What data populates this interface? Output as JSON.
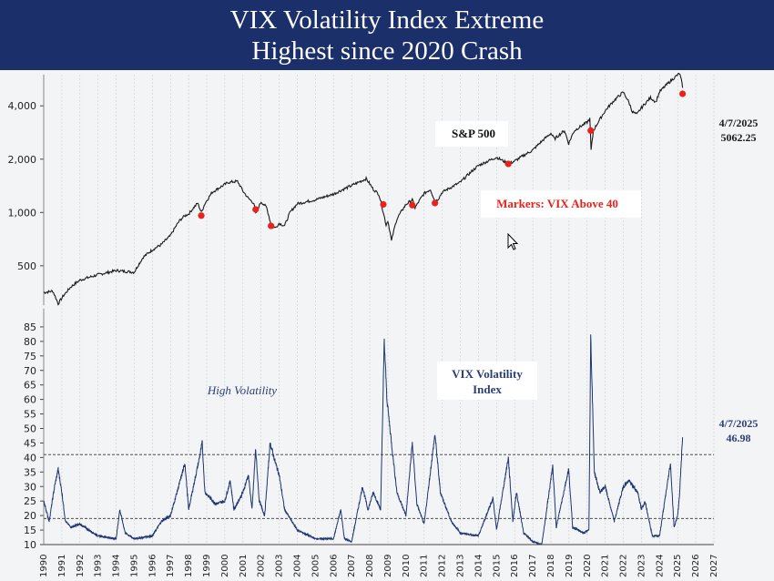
{
  "title_line1": "VIX Volatility Index Extreme",
  "title_line2": "Highest since 2020 Crash",
  "sp_annotation": {
    "date": "4/7/2025",
    "value": "5062.25"
  },
  "vix_annotation": {
    "date": "4/7/2025",
    "value": "46.98"
  },
  "colors": {
    "title_bg": "#1b2f6b",
    "sp_line": "#1a1a1a",
    "vix_line": "#1f3572",
    "marker": "#e8231b",
    "marker_label": "#e8231b",
    "label_navy": "#2c3e78"
  },
  "cursor_icon": "mouse-pointer-icon",
  "chart_data": [
    {
      "type": "line",
      "scale": "log",
      "title": "S&P 500",
      "annotation": "Markers: VIX Above 40",
      "ylim": [
        300,
        6000
      ],
      "yticks": [
        {
          "v": 500,
          "label": "500"
        },
        {
          "v": 1000,
          "label": "1,000"
        },
        {
          "v": 2000,
          "label": "2,000"
        },
        {
          "v": 4000,
          "label": "4,000"
        }
      ],
      "series": [
        {
          "points": [
            [
              1990.0,
              353
            ],
            [
              1990.5,
              360
            ],
            [
              1990.8,
              305
            ],
            [
              1991.1,
              340
            ],
            [
              1991.5,
              380
            ],
            [
              1992.0,
              415
            ],
            [
              1993.0,
              445
            ],
            [
              1994.0,
              470
            ],
            [
              1995.0,
              460
            ],
            [
              1995.5,
              560
            ],
            [
              1996.0,
              615
            ],
            [
              1996.5,
              660
            ],
            [
              1997.0,
              740
            ],
            [
              1997.5,
              900
            ],
            [
              1997.8,
              960
            ],
            [
              1998.0,
              980
            ],
            [
              1998.5,
              1130
            ],
            [
              1998.7,
              1000
            ],
            [
              1998.9,
              1120
            ],
            [
              1999.3,
              1300
            ],
            [
              1999.8,
              1400
            ],
            [
              2000.2,
              1480
            ],
            [
              2000.7,
              1500
            ],
            [
              2001.0,
              1320
            ],
            [
              2001.3,
              1200
            ],
            [
              2001.6,
              1130
            ],
            [
              2001.7,
              980
            ],
            [
              2002.0,
              1150
            ],
            [
              2002.3,
              1070
            ],
            [
              2002.55,
              850
            ],
            [
              2002.8,
              820
            ],
            [
              2003.0,
              870
            ],
            [
              2003.3,
              840
            ],
            [
              2003.6,
              1000
            ],
            [
              2004.0,
              1120
            ],
            [
              2005.0,
              1180
            ],
            [
              2006.0,
              1270
            ],
            [
              2007.0,
              1420
            ],
            [
              2007.8,
              1550
            ],
            [
              2008.2,
              1350
            ],
            [
              2008.5,
              1270
            ],
            [
              2008.75,
              1000
            ],
            [
              2008.9,
              850
            ],
            [
              2009.0,
              900
            ],
            [
              2009.2,
              690
            ],
            [
              2009.5,
              920
            ],
            [
              2010.0,
              1110
            ],
            [
              2010.35,
              1180
            ],
            [
              2010.5,
              1060
            ],
            [
              2011.0,
              1280
            ],
            [
              2011.35,
              1350
            ],
            [
              2011.6,
              1150
            ],
            [
              2011.8,
              1200
            ],
            [
              2012.0,
              1300
            ],
            [
              2013.0,
              1480
            ],
            [
              2014.0,
              1840
            ],
            [
              2015.0,
              2050
            ],
            [
              2015.65,
              1880
            ],
            [
              2016.0,
              1950
            ],
            [
              2017.0,
              2250
            ],
            [
              2018.0,
              2800
            ],
            [
              2018.2,
              2600
            ],
            [
              2018.75,
              2900
            ],
            [
              2018.98,
              2450
            ],
            [
              2019.3,
              2900
            ],
            [
              2020.0,
              3230
            ],
            [
              2020.15,
              3380
            ],
            [
              2020.22,
              2240
            ],
            [
              2020.35,
              2900
            ],
            [
              2020.7,
              3350
            ],
            [
              2021.0,
              3750
            ],
            [
              2021.5,
              4300
            ],
            [
              2022.0,
              4780
            ],
            [
              2022.3,
              4200
            ],
            [
              2022.5,
              3700
            ],
            [
              2022.75,
              3580
            ],
            [
              2023.0,
              3900
            ],
            [
              2023.5,
              4450
            ],
            [
              2023.8,
              4200
            ],
            [
              2024.0,
              4800
            ],
            [
              2024.5,
              5400
            ],
            [
              2025.1,
              6100
            ],
            [
              2025.2,
              5600
            ],
            [
              2025.27,
              5060
            ]
          ]
        }
      ],
      "markers": [
        {
          "x": 1998.7,
          "y": 960
        },
        {
          "x": 2001.7,
          "y": 1040
        },
        {
          "x": 2002.55,
          "y": 840
        },
        {
          "x": 2008.75,
          "y": 1110
        },
        {
          "x": 2010.35,
          "y": 1100
        },
        {
          "x": 2011.6,
          "y": 1130
        },
        {
          "x": 2015.65,
          "y": 1880
        },
        {
          "x": 2020.2,
          "y": 2900
        },
        {
          "x": 2025.27,
          "y": 4680
        }
      ]
    },
    {
      "type": "line",
      "title": "VIX Volatility Index",
      "annotation": "High Volatility",
      "xlim": [
        1990,
        2027
      ],
      "ylim": [
        10,
        90
      ],
      "yticks": [
        10,
        15,
        20,
        25,
        30,
        35,
        40,
        45,
        50,
        55,
        60,
        65,
        70,
        75,
        80,
        85
      ],
      "reference_lines": [
        41,
        19
      ],
      "categories": [
        "1990",
        "1991",
        "1992",
        "1993",
        "1994",
        "1995",
        "1996",
        "1997",
        "1998",
        "1999",
        "2000",
        "2001",
        "2002",
        "2003",
        "2004",
        "2005",
        "2006",
        "2007",
        "2008",
        "2009",
        "2010",
        "2011",
        "2012",
        "2013",
        "2014",
        "2015",
        "2016",
        "2017",
        "2018",
        "2019",
        "2020",
        "2021",
        "2022",
        "2023",
        "2024",
        "2025",
        "2026",
        "2027"
      ],
      "series": [
        {
          "points": [
            [
              1990.0,
              25
            ],
            [
              1990.3,
              18
            ],
            [
              1990.6,
              30
            ],
            [
              1990.8,
              36
            ],
            [
              1991.0,
              28
            ],
            [
              1991.2,
              18
            ],
            [
              1991.5,
              16
            ],
            [
              1992.0,
              17
            ],
            [
              1993.0,
              13
            ],
            [
              1994.0,
              12
            ],
            [
              1994.2,
              22
            ],
            [
              1994.5,
              14
            ],
            [
              1995.0,
              12
            ],
            [
              1996.0,
              13
            ],
            [
              1996.5,
              18
            ],
            [
              1997.0,
              20
            ],
            [
              1997.8,
              38
            ],
            [
              1998.0,
              22
            ],
            [
              1998.6,
              40
            ],
            [
              1998.75,
              45
            ],
            [
              1998.9,
              28
            ],
            [
              1999.5,
              24
            ],
            [
              2000.0,
              25
            ],
            [
              2000.3,
              32
            ],
            [
              2000.5,
              22
            ],
            [
              2001.0,
              28
            ],
            [
              2001.3,
              34
            ],
            [
              2001.5,
              22
            ],
            [
              2001.7,
              43
            ],
            [
              2001.9,
              25
            ],
            [
              2002.2,
              20
            ],
            [
              2002.5,
              45
            ],
            [
              2002.8,
              38
            ],
            [
              2003.0,
              34
            ],
            [
              2003.3,
              22
            ],
            [
              2004.0,
              15
            ],
            [
              2005.0,
              12
            ],
            [
              2006.0,
              12
            ],
            [
              2006.4,
              22
            ],
            [
              2006.6,
              12
            ],
            [
              2007.0,
              11
            ],
            [
              2007.6,
              30
            ],
            [
              2007.9,
              22
            ],
            [
              2008.2,
              28
            ],
            [
              2008.6,
              22
            ],
            [
              2008.8,
              80
            ],
            [
              2008.95,
              60
            ],
            [
              2009.2,
              45
            ],
            [
              2009.5,
              28
            ],
            [
              2010.0,
              20
            ],
            [
              2010.35,
              45
            ],
            [
              2010.6,
              24
            ],
            [
              2011.0,
              17
            ],
            [
              2011.6,
              48
            ],
            [
              2011.9,
              28
            ],
            [
              2012.5,
              18
            ],
            [
              2013.0,
              14
            ],
            [
              2014.0,
              13
            ],
            [
              2014.8,
              26
            ],
            [
              2015.0,
              15
            ],
            [
              2015.65,
              40
            ],
            [
              2015.9,
              18
            ],
            [
              2016.1,
              28
            ],
            [
              2016.5,
              14
            ],
            [
              2017.0,
              11
            ],
            [
              2017.5,
              10
            ],
            [
              2018.1,
              37
            ],
            [
              2018.3,
              16
            ],
            [
              2018.98,
              36
            ],
            [
              2019.2,
              16
            ],
            [
              2019.8,
              14
            ],
            [
              2020.1,
              15
            ],
            [
              2020.2,
              82
            ],
            [
              2020.4,
              35
            ],
            [
              2020.7,
              28
            ],
            [
              2021.0,
              30
            ],
            [
              2021.5,
              18
            ],
            [
              2022.0,
              30
            ],
            [
              2022.3,
              32
            ],
            [
              2022.8,
              28
            ],
            [
              2023.0,
              22
            ],
            [
              2023.2,
              25
            ],
            [
              2023.6,
              13
            ],
            [
              2024.0,
              13
            ],
            [
              2024.6,
              38
            ],
            [
              2024.8,
              16
            ],
            [
              2025.0,
              20
            ],
            [
              2025.1,
              27
            ],
            [
              2025.27,
              47
            ]
          ]
        }
      ]
    }
  ]
}
